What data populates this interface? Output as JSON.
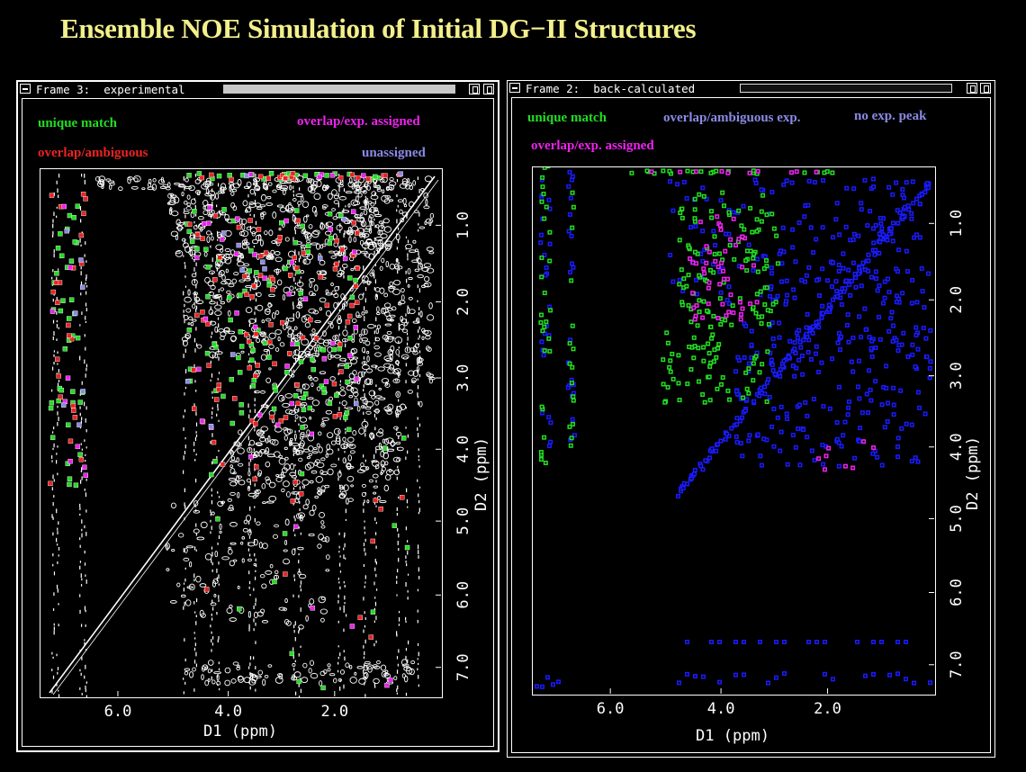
{
  "page": {
    "title": "Ensemble NOE Simulation of Initial DG−II Structures"
  },
  "frames": [
    {
      "title": "Frame 3:  experimental",
      "legend": [
        {
          "label": "unique match",
          "color": "#22dd22"
        },
        {
          "label": "overlap/exp. assigned",
          "color": "#ee22ee"
        },
        {
          "label": "overlap/ambiguous",
          "color": "#ee2222"
        },
        {
          "label": "unassigned",
          "color": "#8a8ae6"
        }
      ],
      "x_axis": {
        "label": "D1   (ppm)",
        "ticks": [
          "6.0",
          "4.0",
          "2.0"
        ]
      },
      "y_axis": {
        "label": "D2   (ppm)",
        "ticks": [
          "1.0",
          "2.0",
          "3.0",
          "4.0",
          "5.0",
          "6.0",
          "7.0"
        ]
      }
    },
    {
      "title": "Frame 2:  back-calculated",
      "legend": [
        {
          "label": "unique match",
          "color": "#22dd22"
        },
        {
          "label": "overlap/ambiguous exp.",
          "color": "#8a8ae6"
        },
        {
          "label": "no exp. peak",
          "color": "#8a8ae6"
        },
        {
          "label": "overlap/exp. assigned",
          "color": "#ee22ee"
        }
      ],
      "x_axis": {
        "label": "D1   (ppm)",
        "ticks": [
          "6.0",
          "4.0",
          "2.0"
        ]
      },
      "y_axis": {
        "label": "D2   (ppm)",
        "ticks": [
          "1.0",
          "2.0",
          "3.0",
          "4.0",
          "5.0",
          "6.0",
          "7.0"
        ]
      }
    }
  ],
  "colors": {
    "background": "#000000",
    "title_text": "#f3f08c",
    "contour": "#ffffff",
    "unique_match": "#22dd22",
    "overlap_assigned": "#ee22ee",
    "overlap_ambiguous": "#ee2222",
    "unassigned": "#8a8ae6",
    "no_exp_peak": "#1a1aff"
  }
}
